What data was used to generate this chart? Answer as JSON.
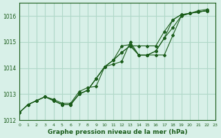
{
  "title": "Graphe pression niveau de la mer (hPa)",
  "bg_color": "#d8f0e8",
  "grid_color": "#b0d8c8",
  "line_color": "#1a5c1a",
  "xlim": [
    0,
    23
  ],
  "ylim": [
    1012,
    1016.5
  ],
  "yticks": [
    1012,
    1013,
    1014,
    1015,
    1016
  ],
  "xticks": [
    0,
    1,
    2,
    3,
    4,
    5,
    6,
    7,
    8,
    9,
    10,
    11,
    12,
    13,
    14,
    15,
    16,
    17,
    18,
    19,
    20,
    21,
    22,
    23
  ],
  "series": [
    {
      "x": [
        0,
        1,
        2,
        3,
        4,
        5,
        6,
        7,
        8,
        9,
        10,
        11,
        12,
        13,
        14,
        15,
        16,
        17,
        18,
        19,
        20,
        21,
        22
      ],
      "y": [
        1012.3,
        1012.6,
        1012.75,
        1012.9,
        1012.8,
        1012.65,
        1012.65,
        1013.1,
        1013.25,
        1013.3,
        1014.05,
        1014.15,
        1014.25,
        1015.0,
        1014.5,
        1014.5,
        1014.5,
        1014.5,
        1015.25,
        1016.0,
        1016.1,
        1016.2,
        1016.25
      ]
    },
    {
      "x": [
        0,
        1,
        2,
        3,
        4,
        5,
        6,
        7,
        8,
        9,
        10,
        11,
        12,
        13,
        14,
        15,
        16,
        17,
        18,
        19,
        20,
        21,
        22
      ],
      "y": [
        1012.3,
        1012.6,
        1012.75,
        1012.9,
        1012.75,
        1012.6,
        1012.6,
        1013.0,
        1013.15,
        1013.6,
        1014.05,
        1014.3,
        1014.6,
        1014.85,
        1014.5,
        1014.5,
        1014.65,
        1015.15,
        1015.55,
        1016.0,
        1016.1,
        1016.15,
        1016.2
      ]
    },
    {
      "x": [
        0,
        1,
        2,
        3,
        4,
        5,
        6,
        7,
        8,
        9,
        10,
        11,
        12,
        13,
        14,
        15,
        16,
        17,
        18,
        19,
        20,
        21,
        22
      ],
      "y": [
        1012.3,
        1012.6,
        1012.75,
        1012.9,
        1012.75,
        1012.6,
        1012.6,
        1013.0,
        1013.15,
        1013.6,
        1014.05,
        1014.3,
        1014.85,
        1014.9,
        1014.5,
        1014.5,
        1014.65,
        1015.15,
        1015.85,
        1016.05,
        1016.1,
        1016.15,
        1016.2
      ]
    },
    {
      "x": [
        0,
        1,
        2,
        3,
        4,
        5,
        6,
        7,
        8,
        9,
        10,
        11,
        12,
        13,
        14,
        15,
        16,
        17,
        18,
        19,
        20,
        21,
        22
      ],
      "y": [
        1012.3,
        1012.6,
        1012.75,
        1012.9,
        1012.75,
        1012.6,
        1012.6,
        1013.0,
        1013.15,
        1013.6,
        1014.05,
        1014.3,
        1014.6,
        1014.85,
        1014.85,
        1014.85,
        1014.85,
        1015.4,
        1015.85,
        1016.05,
        1016.1,
        1016.15,
        1016.2
      ]
    }
  ]
}
